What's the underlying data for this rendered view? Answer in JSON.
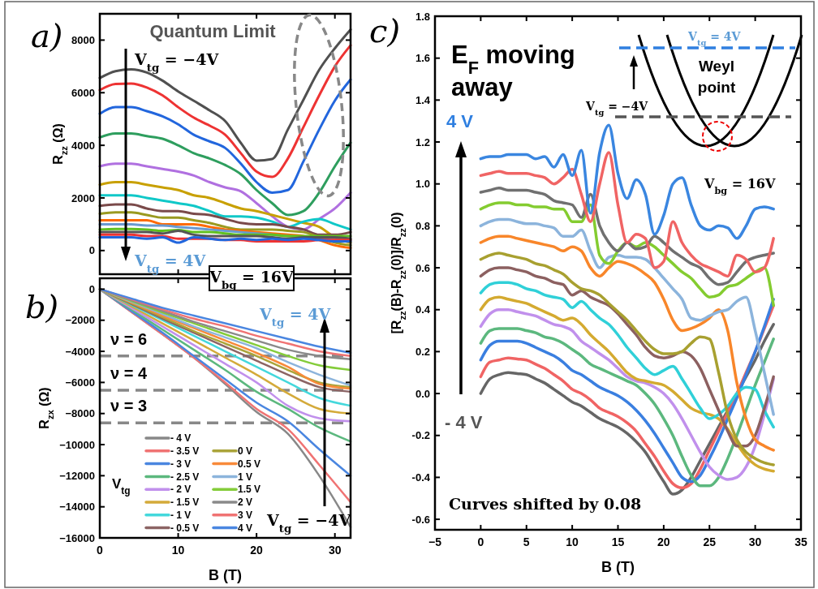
{
  "chart_data": [
    {
      "type": "line",
      "ylabel": "R$_{zz}$ (Ω)",
      "x": [
        0,
        2,
        4,
        6,
        8,
        10,
        12,
        14,
        16,
        18,
        20,
        22,
        24,
        26,
        28,
        30,
        32
      ],
      "xlim": [
        0,
        32
      ],
      "xticks": [
        0,
        10,
        20,
        30
      ],
      "ylim": [
        -900,
        9000
      ],
      "yticks": [
        0,
        2000,
        4000,
        6000,
        8000
      ],
      "tick_labels": "y",
      "annotations": [
        "a)",
        "Quantum Limit",
        "V$_{tg}$ = −4V",
        "V$_{tg}$ = 4V"
      ],
      "series": [
        {
          "color": "#505050",
          "values": [
            6560,
            6820,
            6890,
            6770,
            6460,
            6050,
            5690,
            5330,
            4920,
            4090,
            3420,
            3480,
            4600,
            5740,
            6870,
            7690,
            8400
          ]
        },
        {
          "color": "#ee3333",
          "values": [
            6100,
            6330,
            6350,
            6200,
            5900,
            5450,
            5050,
            4750,
            4400,
            3700,
            3000,
            2800,
            3500,
            4700,
            5900,
            7000,
            7800
          ]
        },
        {
          "color": "#2266dd",
          "values": [
            5200,
            5450,
            5450,
            5300,
            5100,
            4800,
            4400,
            4150,
            3900,
            3300,
            2600,
            2200,
            2300,
            3400,
            4600,
            5700,
            6500
          ]
        },
        {
          "color": "#2e9e5e",
          "values": [
            4300,
            4450,
            4450,
            4350,
            4250,
            4000,
            3700,
            3500,
            3250,
            2900,
            2300,
            1800,
            1350,
            1500,
            2200,
            3200,
            4100
          ]
        },
        {
          "color": "#b070e0",
          "values": [
            3200,
            3300,
            3300,
            3200,
            3100,
            3000,
            2850,
            2600,
            2400,
            2250,
            1800,
            1300,
            900,
            800,
            1200,
            1600,
            2200
          ]
        },
        {
          "color": "#c8a000",
          "values": [
            2500,
            2600,
            2600,
            2500,
            2400,
            2300,
            2100,
            2000,
            1800,
            1600,
            1500,
            1350,
            1200,
            1050,
            900,
            500,
            300
          ]
        },
        {
          "color": "#10c8c8",
          "values": [
            2100,
            2100,
            2100,
            2000,
            1900,
            1800,
            1700,
            1500,
            1300,
            1300,
            1250,
            1100,
            900,
            1100,
            1200,
            1000,
            800
          ]
        },
        {
          "color": "#7a4a4a",
          "values": [
            1700,
            1750,
            1750,
            1600,
            1500,
            1500,
            1400,
            1350,
            1200,
            1050,
            1000,
            1000,
            900,
            800,
            600,
            600,
            700
          ]
        },
        {
          "color": "#9a9a20",
          "values": [
            1400,
            1450,
            1450,
            1350,
            1250,
            1250,
            1150,
            1050,
            900,
            800,
            800,
            800,
            750,
            700,
            500,
            300,
            200
          ]
        },
        {
          "color": "#ff6a00",
          "values": [
            1150,
            1150,
            1150,
            1150,
            1000,
            1000,
            1000,
            900,
            800,
            750,
            700,
            650,
            600,
            550,
            400,
            200,
            100
          ]
        },
        {
          "color": "#6a9ad0",
          "values": [
            1000,
            1000,
            1000,
            950,
            950,
            900,
            850,
            800,
            750,
            700,
            650,
            600,
            550,
            500,
            450,
            400,
            400
          ]
        },
        {
          "color": "#60c020",
          "values": [
            800,
            820,
            820,
            800,
            750,
            780,
            700,
            700,
            650,
            600,
            600,
            600,
            550,
            550,
            550,
            550,
            550
          ]
        },
        {
          "color": "#555555",
          "values": [
            700,
            700,
            700,
            700,
            650,
            750,
            600,
            550,
            550,
            550,
            550,
            500,
            450,
            500,
            500,
            500,
            450
          ]
        },
        {
          "color": "#ee3333",
          "values": [
            600,
            600,
            600,
            550,
            550,
            450,
            450,
            450,
            400,
            400,
            350,
            350,
            350,
            350,
            400,
            400,
            400
          ]
        },
        {
          "color": "#2266dd",
          "values": [
            500,
            500,
            500,
            450,
            500,
            300,
            500,
            450,
            400,
            450,
            400,
            450,
            400,
            450,
            400,
            350,
            350
          ]
        }
      ]
    },
    {
      "type": "line",
      "xlabel": "B (T)",
      "ylabel": "R$_{zx}$ (Ω)",
      "x": [
        0,
        4,
        8,
        12,
        16,
        20,
        24,
        28,
        32
      ],
      "xlim": [
        0,
        32
      ],
      "xticks": [
        0,
        10,
        20,
        30
      ],
      "ylim": [
        -16000,
        700
      ],
      "yticks": [
        0,
        -2000,
        -4000,
        -6000,
        -8000,
        -10000,
        -12000,
        -14000,
        -16000
      ],
      "legend": "bottom left",
      "legend_title": "V$_{tg}$",
      "annotations": [
        "b)",
        "V$_{bg}$ = 16V",
        "V$_{tg}$ = 4V",
        "V$_{tg}$ = −4V",
        {
          "text": "ν = 6",
          "y": -4300
        },
        {
          "text": "ν = 4",
          "y": -6500
        },
        {
          "text": "ν = 3",
          "y": -8600
        }
      ],
      "ref_lines": [
        {
          "axis": "y",
          "value": -4300,
          "color": "#888888",
          "line_style": "dashed"
        },
        {
          "axis": "y",
          "value": -6500,
          "color": "#888888",
          "line_style": "dashed"
        },
        {
          "axis": "y",
          "value": -8600,
          "color": "#888888",
          "line_style": "dashed"
        }
      ],
      "series": [
        {
          "name": "- 4 V",
          "color": "#888888",
          "values": [
            0,
            -1450,
            -2900,
            -4400,
            -6100,
            -7900,
            -9300,
            -12000,
            -15300
          ]
        },
        {
          "name": "- 3.5 V",
          "color": "#f07373",
          "values": [
            0,
            -1450,
            -2900,
            -4400,
            -6000,
            -7700,
            -9000,
            -11300,
            -13700
          ]
        },
        {
          "name": "- 3 V",
          "color": "#4a86e0",
          "values": [
            0,
            -1400,
            -2800,
            -4300,
            -5800,
            -7300,
            -8500,
            -10300,
            -12000
          ]
        },
        {
          "name": "- 2.5 V",
          "color": "#5cb87e",
          "values": [
            0,
            -1300,
            -2600,
            -3900,
            -5200,
            -6600,
            -7700,
            -8900,
            -9800
          ]
        },
        {
          "name": "- 2 V",
          "color": "#c190ec",
          "values": [
            0,
            -1200,
            -2400,
            -3600,
            -4800,
            -6000,
            -7500,
            -8300,
            -8500
          ]
        },
        {
          "name": "- 1.5 V",
          "color": "#d4aa3a",
          "values": [
            0,
            -1100,
            -2200,
            -3300,
            -4400,
            -5500,
            -6700,
            -7700,
            -8000
          ]
        },
        {
          "name": "- 1 V",
          "color": "#44d8dc",
          "values": [
            0,
            -1000,
            -2000,
            -3000,
            -4000,
            -5000,
            -6000,
            -7000,
            -7500
          ]
        },
        {
          "name": "- 0.5 V",
          "color": "#8c6464",
          "values": [
            0,
            -950,
            -1900,
            -2800,
            -3700,
            -4600,
            -5500,
            -6300,
            -6600
          ]
        },
        {
          "name": "0 V",
          "color": "#aaa43a",
          "values": [
            0,
            -900,
            -1800,
            -2700,
            -3500,
            -4300,
            -5200,
            -6000,
            -6300
          ]
        },
        {
          "name": "0.5 V",
          "color": "#f88a3a",
          "values": [
            0,
            -850,
            -1700,
            -2500,
            -3300,
            -4100,
            -5000,
            -6100,
            -6400
          ]
        },
        {
          "name": "1 V",
          "color": "#8cb4dc",
          "values": [
            0,
            -800,
            -1600,
            -2400,
            -3100,
            -3800,
            -4700,
            -5500,
            -6200
          ]
        },
        {
          "name": "1.5 V",
          "color": "#84cc3a",
          "values": [
            0,
            -750,
            -1500,
            -2200,
            -2900,
            -3600,
            -4300,
            -4900,
            -5200
          ]
        },
        {
          "name": "2 V",
          "color": "#8a8a8a",
          "values": [
            0,
            -700,
            -1400,
            -2100,
            -2700,
            -3300,
            -3900,
            -4300,
            -4500
          ]
        },
        {
          "name": "3 V",
          "color": "#f07373",
          "values": [
            0,
            -650,
            -1300,
            -1900,
            -2400,
            -3000,
            -3500,
            -4000,
            -4300
          ]
        },
        {
          "name": "4 V",
          "color": "#4a86e0",
          "values": [
            0,
            -600,
            -1200,
            -1700,
            -2200,
            -2700,
            -3200,
            -3700,
            -4100
          ]
        }
      ]
    },
    {
      "type": "line",
      "xlabel": "B (T)",
      "ylabel": "[R$_{zz}$(B)-R$_{zz}$(0)]/R$_{zz}$(0)",
      "x": [
        0,
        1,
        2,
        3,
        4,
        5,
        6,
        7,
        8,
        9,
        10,
        11,
        12,
        13,
        14,
        15,
        16,
        17,
        18,
        19,
        20,
        21,
        22,
        23,
        24,
        25,
        26,
        27,
        28,
        29,
        30,
        31,
        32
      ],
      "xlim": [
        -5,
        35
      ],
      "xticks": [
        -5,
        0,
        5,
        10,
        15,
        20,
        25,
        30,
        35
      ],
      "ylim": [
        -0.65,
        1.8
      ],
      "yticks": [
        {
          "value": -0.6,
          "label": "-0.6"
        },
        {
          "value": -0.4,
          "label": "-0.4"
        },
        {
          "value": -0.2,
          "label": "-0.2"
        },
        {
          "value": 0,
          "label": "0.0"
        },
        {
          "value": 0.2,
          "label": "0.2"
        },
        {
          "value": 0.4,
          "label": "0.4"
        },
        {
          "value": 0.6,
          "label": "0.6"
        },
        {
          "value": 0.8,
          "label": "0.8"
        },
        {
          "value": 1,
          "label": "1.0"
        },
        {
          "value": 1.2,
          "label": "1.2"
        },
        {
          "value": 1.4,
          "label": "1.4"
        },
        {
          "value": 1.6,
          "label": "1.6"
        },
        {
          "value": 1.8,
          "label": "1.8"
        }
      ],
      "annotations": [
        "c)",
        "E$_{F}$ moving",
        "away",
        "4 V",
        "- 4 V",
        "Curves shifted by 0.08",
        "V$_{tg}$ = 4V",
        "Weyl",
        "point",
        "V$_{tg}$ = −4V",
        "V$_{bg}$ = 16V"
      ],
      "series": [
        {
          "color": "#666666",
          "values": [
            0,
            0.07,
            0.09,
            0.1,
            0.095,
            0.09,
            0.07,
            0.05,
            0.02,
            -0.01,
            -0.04,
            -0.06,
            -0.09,
            -0.12,
            -0.14,
            -0.16,
            -0.19,
            -0.23,
            -0.28,
            -0.35,
            -0.42,
            -0.48,
            -0.46,
            -0.4,
            -0.32,
            -0.24,
            -0.16,
            -0.08,
            0,
            0.08,
            0.16,
            0.25,
            0.33
          ]
        },
        {
          "color": "#f06464",
          "values": [
            0.08,
            0.15,
            0.16,
            0.17,
            0.165,
            0.16,
            0.14,
            0.12,
            0.09,
            0.06,
            0.02,
            0,
            -0.03,
            -0.07,
            -0.09,
            -0.11,
            -0.14,
            -0.18,
            -0.24,
            -0.3,
            -0.37,
            -0.43,
            -0.45,
            -0.43,
            -0.36,
            -0.27,
            -0.18,
            -0.09,
            0,
            0.1,
            0.2,
            0.31,
            0.42
          ]
        },
        {
          "color": "#3a7fe0",
          "values": [
            0.16,
            0.23,
            0.25,
            0.25,
            0.25,
            0.24,
            0.22,
            0.2,
            0.18,
            0.15,
            0.11,
            0.09,
            0.06,
            0.03,
            0.01,
            -0.01,
            -0.04,
            -0.08,
            -0.13,
            -0.19,
            -0.26,
            -0.33,
            -0.4,
            -0.42,
            -0.39,
            -0.31,
            -0.22,
            -0.12,
            -0.02,
            0.09,
            0.2,
            0.32,
            0.45
          ]
        },
        {
          "color": "#5cb87e",
          "values": [
            0.24,
            0.3,
            0.31,
            0.31,
            0.31,
            0.3,
            0.29,
            0.27,
            0.26,
            0.24,
            0.21,
            0.18,
            0.14,
            0.12,
            0.1,
            0.08,
            0.06,
            0.04,
            0,
            -0.05,
            -0.12,
            -0.2,
            -0.3,
            -0.39,
            -0.44,
            -0.44,
            -0.4,
            -0.31,
            -0.2,
            -0.08,
            0.04,
            0.15,
            0.26
          ]
        },
        {
          "color": "#c190ec",
          "values": [
            0.32,
            0.38,
            0.4,
            0.4,
            0.39,
            0.38,
            0.37,
            0.35,
            0.33,
            0.32,
            0.3,
            0.25,
            0.22,
            0.19,
            0.16,
            0.12,
            0.08,
            0.06,
            0.05,
            0.03,
            0,
            -0.05,
            -0.12,
            -0.2,
            -0.28,
            -0.35,
            -0.39,
            -0.41,
            -0.4,
            -0.35,
            -0.25,
            -0.1,
            0.07
          ]
        },
        {
          "color": "#d4aa30",
          "values": [
            0.4,
            0.45,
            0.46,
            0.45,
            0.44,
            0.43,
            0.41,
            0.39,
            0.37,
            0.35,
            0.36,
            0.33,
            0.28,
            0.24,
            0.2,
            0.15,
            0.1,
            0.07,
            0.06,
            0.05,
            0.04,
            0.01,
            -0.03,
            -0.07,
            -0.09,
            -0.1,
            -0.12,
            -0.17,
            -0.24,
            -0.3,
            -0.34,
            -0.36,
            -0.37
          ]
        },
        {
          "color": "#30d0d8",
          "values": [
            0.48,
            0.52,
            0.53,
            0.53,
            0.52,
            0.5,
            0.49,
            0.47,
            0.46,
            0.45,
            0.41,
            0.44,
            0.4,
            0.36,
            0.33,
            0.28,
            0.22,
            0.17,
            0.12,
            0.09,
            0.11,
            0.13,
            0.07,
            0,
            -0.07,
            -0.12,
            -0.1,
            -0.06,
            0,
            0.03,
            0.02,
            -0.08,
            -0.16
          ]
        },
        {
          "color": "#8c6060",
          "values": [
            0.56,
            0.59,
            0.6,
            0.6,
            0.59,
            0.58,
            0.56,
            0.55,
            0.53,
            0.52,
            0.47,
            0.49,
            0.46,
            0.44,
            0.42,
            0.38,
            0.33,
            0.28,
            0.22,
            0.18,
            0.17,
            0.18,
            0.2,
            0.18,
            0.12,
            0.02,
            -0.08,
            -0.18,
            -0.25,
            -0.25,
            -0.2,
            -0.07,
            0.08
          ]
        },
        {
          "color": "#a8a030",
          "values": [
            0.64,
            0.66,
            0.67,
            0.66,
            0.65,
            0.64,
            0.62,
            0.61,
            0.59,
            0.57,
            0.53,
            0.5,
            0.49,
            0.47,
            0.43,
            0.39,
            0.35,
            0.3,
            0.25,
            0.21,
            0.19,
            0.19,
            0.2,
            0.24,
            0.27,
            0.26,
            0.1,
            -0.1,
            -0.22,
            -0.28,
            -0.31,
            -0.33,
            -0.34
          ]
        },
        {
          "color": "#f8862a",
          "values": [
            0.72,
            0.74,
            0.75,
            0.75,
            0.74,
            0.73,
            0.72,
            0.71,
            0.7,
            0.68,
            0.7,
            0.68,
            0.6,
            0.56,
            0.6,
            0.63,
            0.62,
            0.6,
            0.57,
            0.53,
            0.45,
            0.35,
            0.3,
            0.31,
            0.33,
            0.36,
            0.4,
            0.3,
            0.05,
            -0.12,
            -0.22,
            -0.25,
            -0.27
          ]
        },
        {
          "color": "#8cb4dc",
          "values": [
            0.8,
            0.82,
            0.83,
            0.83,
            0.82,
            0.81,
            0.81,
            0.8,
            0.79,
            0.75,
            0.75,
            0.78,
            0.68,
            0.6,
            0.65,
            0.66,
            0.65,
            0.65,
            0.64,
            0.6,
            0.55,
            0.5,
            0.45,
            0.36,
            0.35,
            0.37,
            0.39,
            0.4,
            0.44,
            0.46,
            0.3,
            0.1,
            -0.1
          ]
        },
        {
          "color": "#84cc30",
          "values": [
            0.88,
            0.9,
            0.91,
            0.91,
            0.9,
            0.9,
            0.89,
            0.89,
            0.88,
            0.88,
            0.82,
            0.82,
            0.9,
            0.66,
            0.62,
            0.68,
            0.72,
            0.7,
            0.72,
            0.7,
            0.66,
            0.62,
            0.58,
            0.55,
            0.5,
            0.46,
            0.47,
            0.51,
            0.52,
            0.55,
            0.58,
            0.6,
            0.42
          ]
        },
        {
          "color": "#707070",
          "values": [
            0.96,
            0.97,
            0.98,
            0.97,
            0.97,
            0.97,
            0.96,
            0.95,
            0.92,
            0.91,
            0.9,
            0.84,
            0.95,
            0.8,
            0.72,
            0.68,
            0.72,
            0.69,
            0.7,
            0.75,
            0.72,
            0.68,
            0.65,
            0.62,
            0.6,
            0.55,
            0.52,
            0.53,
            0.58,
            0.63,
            0.65,
            0.66,
            0.67
          ]
        },
        {
          "color": "#f06464",
          "values": [
            1.04,
            1.05,
            1.06,
            1.05,
            1.05,
            1.05,
            1.04,
            1.03,
            1,
            1.03,
            1.07,
            0.95,
            0.82,
            1,
            1.15,
            0.9,
            0.72,
            0.76,
            0.74,
            0.6,
            0.63,
            0.82,
            0.72,
            0.66,
            0.62,
            0.6,
            0.58,
            0.56,
            0.66,
            0.64,
            0.58,
            0.6,
            0.74
          ]
        },
        {
          "color": "#3a86e0",
          "values": [
            1.12,
            1.13,
            1.13,
            1.14,
            1.14,
            1.14,
            1.12,
            1.13,
            1.08,
            1.14,
            1.04,
            1.16,
            0.86,
            1.15,
            1.28,
            1.05,
            0.93,
            1.02,
            0.95,
            0.76,
            0.85,
            1,
            1.03,
            0.9,
            0.8,
            0.78,
            0.8,
            0.79,
            0.74,
            0.8,
            0.88,
            0.89,
            0.88
          ]
        }
      ]
    }
  ]
}
